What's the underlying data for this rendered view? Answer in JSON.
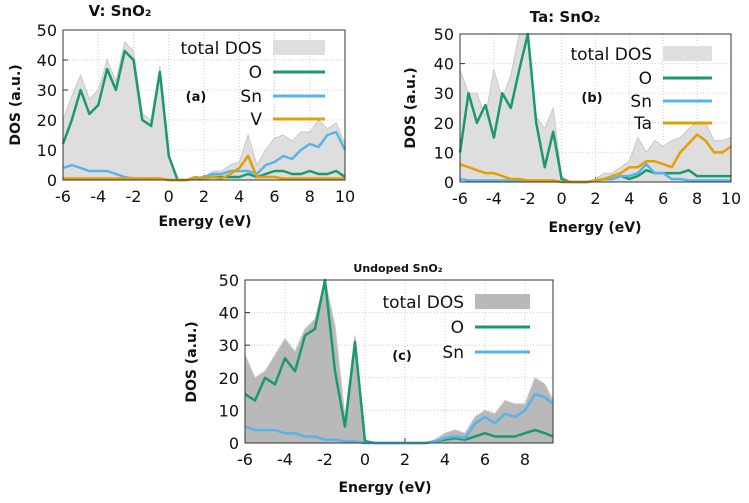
{
  "chart_data": [
    {
      "type": "area",
      "title": "V: SnO₂",
      "panel_label": "(a)",
      "xlabel": "Energy (eV)",
      "ylabel": "DOS (a.u.)",
      "xlim": [
        -6,
        10
      ],
      "ylim": [
        0,
        50
      ],
      "xticks": [
        "-6",
        "-4",
        "-2",
        "0",
        "2",
        "4",
        "6",
        "8",
        "10"
      ],
      "yticks": [
        "0",
        "10",
        "20",
        "30",
        "40",
        "50"
      ],
      "grid": true,
      "legend_placement": "top-right",
      "total_fill_color": "#dedede",
      "x": [
        -6,
        -5.5,
        -5,
        -4.5,
        -4,
        -3.5,
        -3,
        -2.5,
        -2,
        -1.5,
        -1,
        -0.5,
        0,
        0.5,
        1,
        1.5,
        2,
        2.5,
        3,
        3.5,
        4,
        4.5,
        5,
        5.5,
        6,
        6.5,
        7,
        7.5,
        8,
        8.5,
        9,
        9.5,
        10
      ],
      "series": [
        {
          "name": "total DOS",
          "kind": "fill",
          "color": "#dedede",
          "values": [
            20,
            28,
            35,
            27,
            30,
            40,
            33,
            46,
            43,
            22,
            20,
            38,
            8,
            0,
            0,
            1,
            1,
            3,
            3,
            5,
            6,
            15,
            5,
            10,
            14,
            15,
            13,
            16,
            16,
            20,
            17,
            19,
            12
          ]
        },
        {
          "name": "O",
          "kind": "line",
          "color": "#1a9a6c",
          "values": [
            12,
            20,
            30,
            22,
            25,
            37,
            30,
            43,
            40,
            20,
            18,
            36,
            8,
            0,
            0,
            0.5,
            0.5,
            1,
            1,
            1,
            1,
            2,
            1,
            2,
            3,
            3,
            2,
            2,
            3,
            2,
            2,
            3,
            1
          ]
        },
        {
          "name": "Sn",
          "kind": "line",
          "color": "#56b4e9",
          "values": [
            4,
            5,
            4,
            3,
            3,
            3,
            2,
            1,
            0.5,
            0.5,
            0.5,
            0.5,
            0,
            0,
            0,
            0.5,
            1,
            2,
            2,
            3,
            3,
            3,
            2,
            5,
            6,
            8,
            7,
            10,
            12,
            11,
            15,
            16,
            10
          ]
        },
        {
          "name": "V",
          "kind": "line",
          "color": "#e69f00",
          "values": [
            0.5,
            0.5,
            0.5,
            0.5,
            0.5,
            0.5,
            0.5,
            0.5,
            0.5,
            0.5,
            0.5,
            0.5,
            0,
            0,
            0,
            1,
            0.5,
            1,
            0.5,
            2,
            4,
            8,
            1,
            1,
            1,
            0.5,
            0.5,
            0.5,
            0.5,
            0.5,
            0.5,
            0.5,
            0.5
          ]
        }
      ]
    },
    {
      "type": "area",
      "title": "Ta: SnO₂",
      "panel_label": "(b)",
      "xlabel": "Energy (eV)",
      "ylabel": "DOS (a.u.)",
      "xlim": [
        -6,
        10
      ],
      "ylim": [
        0,
        50
      ],
      "xticks": [
        "-6",
        "-4",
        "-2",
        "0",
        "2",
        "4",
        "6",
        "8",
        "10"
      ],
      "yticks": [
        "0",
        "10",
        "20",
        "30",
        "40",
        "50"
      ],
      "grid": true,
      "legend_placement": "top-right",
      "total_fill_color": "#dedede",
      "x": [
        -6,
        -5.5,
        -5,
        -4.5,
        -4,
        -3.5,
        -3,
        -2.5,
        -2,
        -1.5,
        -1,
        -0.5,
        0,
        0.5,
        1,
        1.5,
        2,
        2.5,
        3,
        3.5,
        4,
        4.5,
        5,
        5.5,
        6,
        6.5,
        7,
        7.5,
        8,
        8.5,
        9,
        9.5,
        10
      ],
      "series": [
        {
          "name": "total DOS",
          "kind": "fill",
          "color": "#dedede",
          "values": [
            38,
            30,
            30,
            22,
            38,
            28,
            36,
            50,
            50,
            22,
            18,
            25,
            2,
            0,
            0,
            0,
            1,
            3,
            3,
            5,
            7,
            15,
            10,
            14,
            12,
            14,
            15,
            18,
            20,
            20,
            14,
            14,
            15
          ]
        },
        {
          "name": "O",
          "kind": "line",
          "color": "#1a9a6c",
          "values": [
            10,
            30,
            20,
            26,
            15,
            30,
            25,
            38,
            50,
            20,
            5,
            17,
            1,
            0,
            0,
            0,
            0.5,
            1,
            1,
            2,
            1,
            2,
            4,
            3,
            3,
            3,
            3,
            4,
            2,
            2,
            2,
            2,
            2
          ]
        },
        {
          "name": "Sn",
          "kind": "line",
          "color": "#56b4e9",
          "values": [
            1,
            0.5,
            0.5,
            0.5,
            0.5,
            0.5,
            0.5,
            0.5,
            0.5,
            0.5,
            0.5,
            0.5,
            0,
            0,
            0,
            0,
            0.5,
            1,
            1,
            2,
            2,
            3,
            6,
            3,
            3,
            1,
            1,
            0.5,
            0.5,
            0.5,
            0.5,
            0.5,
            0.5
          ]
        },
        {
          "name": "Ta",
          "kind": "line",
          "color": "#e69f00",
          "values": [
            6,
            5,
            4,
            3,
            3,
            2,
            1,
            1,
            0.5,
            0.5,
            0.5,
            0.5,
            0,
            0,
            0,
            0,
            0.5,
            1,
            2,
            3,
            5,
            5,
            7,
            7,
            6,
            5,
            10,
            13,
            16,
            14,
            10,
            10,
            12
          ]
        }
      ]
    },
    {
      "type": "area",
      "title": "Undoped SnO₂",
      "panel_label": "(c)",
      "xlabel": "Energy (eV)",
      "ylabel": "DOS (a.u.)",
      "xlim": [
        -6,
        9.4
      ],
      "ylim": [
        0,
        50
      ],
      "xticks": [
        "-6",
        "-4",
        "-2",
        "0",
        "2",
        "4",
        "6",
        "8"
      ],
      "yticks": [
        "0",
        "10",
        "20",
        "30",
        "40",
        "50"
      ],
      "grid": true,
      "legend_placement": "top-right",
      "total_fill_color": "#b9b9b9",
      "x": [
        -6,
        -5.5,
        -5,
        -4.5,
        -4,
        -3.5,
        -3,
        -2.5,
        -2,
        -1.5,
        -1,
        -0.5,
        0,
        0.5,
        1,
        1.5,
        2,
        2.5,
        3,
        3.5,
        4,
        4.5,
        5,
        5.5,
        6,
        6.5,
        7,
        7.5,
        8,
        8.5,
        9,
        9.4
      ],
      "series": [
        {
          "name": "total DOS",
          "kind": "fill",
          "color": "#b9b9b9",
          "values": [
            27,
            20,
            22,
            27,
            32,
            28,
            35,
            38,
            50,
            36,
            8,
            33,
            1,
            0,
            0,
            0,
            0,
            0,
            0,
            1,
            3,
            4,
            3,
            8,
            10,
            9,
            13,
            12,
            12,
            20,
            18,
            13
          ]
        },
        {
          "name": "O",
          "kind": "line",
          "color": "#1a9a6c",
          "values": [
            15,
            13,
            20,
            18,
            26,
            22,
            33,
            35,
            50,
            22,
            5,
            31,
            0.5,
            0,
            0,
            0,
            0,
            0,
            0,
            0.5,
            1,
            1.5,
            1,
            2,
            3,
            2,
            2,
            2,
            3,
            4,
            3,
            2
          ]
        },
        {
          "name": "Sn",
          "kind": "line",
          "color": "#56b4e9",
          "values": [
            5,
            4,
            4,
            4,
            3,
            3,
            2,
            2,
            1,
            1,
            0.5,
            0.5,
            0,
            0,
            0,
            0,
            0,
            0,
            0,
            0.5,
            1.5,
            2,
            1.5,
            6,
            8,
            6,
            9,
            8,
            10,
            15,
            14,
            12
          ]
        }
      ]
    }
  ]
}
